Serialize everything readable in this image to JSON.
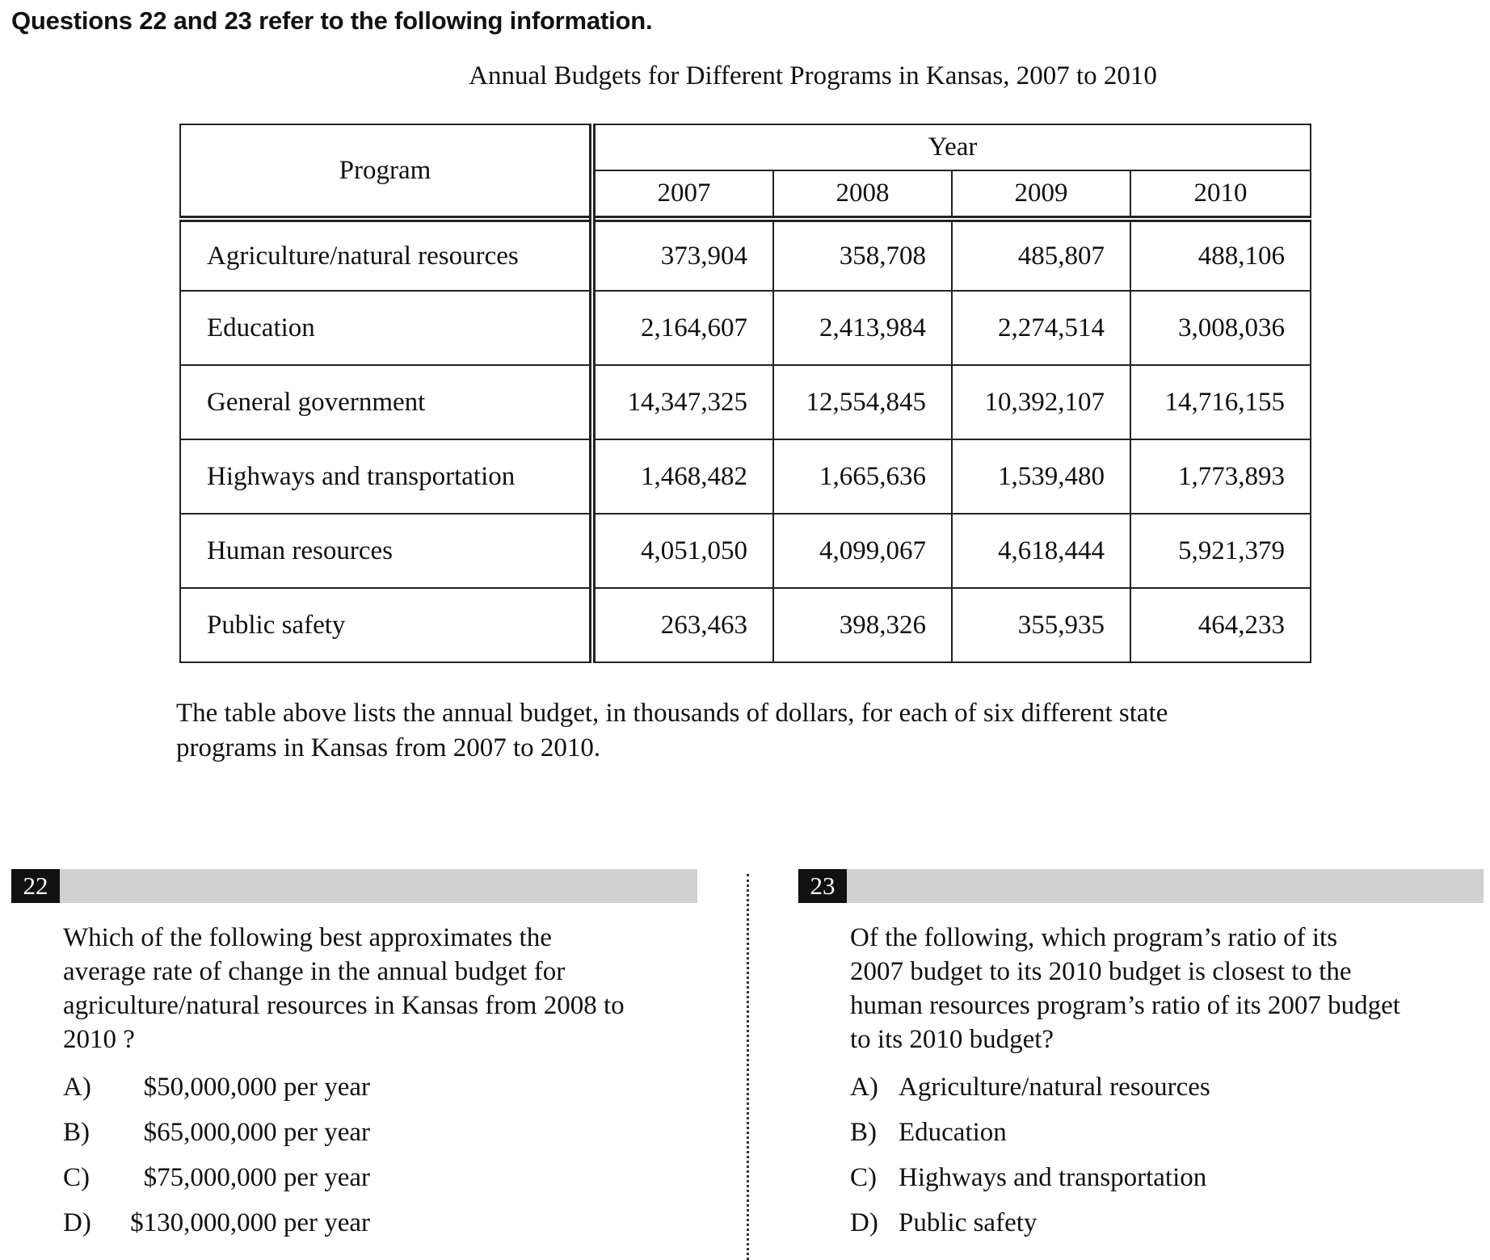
{
  "intro": "Questions 22 and 23 refer to the following information.",
  "table": {
    "title": "Annual Budgets for Different Programs in Kansas, 2007 to 2010",
    "program_header": "Program",
    "year_header": "Year",
    "years": [
      "2007",
      "2008",
      "2009",
      "2010"
    ],
    "rows": [
      {
        "program": "Agriculture/natural resources",
        "values": [
          "373,904",
          "358,708",
          "485,807",
          "488,106"
        ]
      },
      {
        "program": "Education",
        "values": [
          "2,164,607",
          "2,413,984",
          "2,274,514",
          "3,008,036"
        ]
      },
      {
        "program": "General government",
        "values": [
          "14,347,325",
          "12,554,845",
          "10,392,107",
          "14,716,155"
        ]
      },
      {
        "program": "Highways and transportation",
        "values": [
          "1,468,482",
          "1,665,636",
          "1,539,480",
          "1,773,893"
        ]
      },
      {
        "program": "Human resources",
        "values": [
          "4,051,050",
          "4,099,067",
          "4,618,444",
          "5,921,379"
        ]
      },
      {
        "program": "Public safety",
        "values": [
          "263,463",
          "398,326",
          "355,935",
          "464,233"
        ]
      }
    ]
  },
  "caption_lines": [
    "The table above lists the annual budget, in thousands of dollars, for each of six different state",
    "programs in Kansas from 2007 to 2010."
  ],
  "q22": {
    "number": "22",
    "text_lines": [
      "Which of the following best approximates the",
      "average rate of change in the annual budget for",
      "agriculture/natural resources in Kansas from 2008 to",
      "2010 ?"
    ],
    "choices": [
      {
        "letter": "A)",
        "text": "$50,000,000 per year"
      },
      {
        "letter": "B)",
        "text": "$65,000,000 per year"
      },
      {
        "letter": "C)",
        "text": "$75,000,000 per year"
      },
      {
        "letter": "D)",
        "text": "$130,000,000 per year"
      }
    ]
  },
  "q23": {
    "number": "23",
    "text_lines": [
      "Of the following, which program’s ratio of its",
      "2007 budget to its 2010 budget is closest to the",
      "human resources program’s ratio of its 2007 budget",
      "to its 2010 budget?"
    ],
    "choices": [
      {
        "letter": "A)",
        "text": "Agriculture/natural resources"
      },
      {
        "letter": "B)",
        "text": "Education"
      },
      {
        "letter": "C)",
        "text": "Highways and transportation"
      },
      {
        "letter": "D)",
        "text": "Public safety"
      }
    ]
  }
}
